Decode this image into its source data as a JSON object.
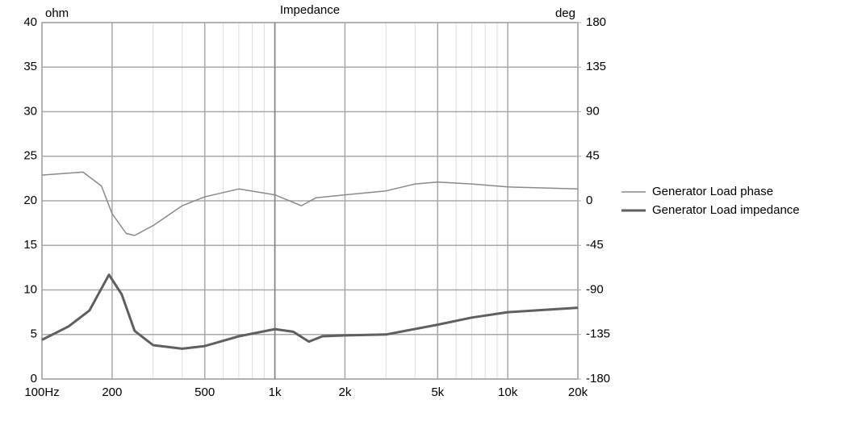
{
  "chart_data": {
    "type": "line",
    "title": "Impedance",
    "y_label": "ohm",
    "y2_label": "deg",
    "x_log": true,
    "grid": true,
    "legend_position": "right",
    "xlim": [
      100,
      20000
    ],
    "xticks": [
      {
        "value": 100,
        "label": "100Hz"
      },
      200,
      500,
      {
        "value": 1000,
        "label": "1k"
      },
      {
        "value": 2000,
        "label": "2k"
      },
      {
        "value": 5000,
        "label": "5k"
      },
      {
        "value": 10000,
        "label": "10k"
      },
      {
        "value": 20000,
        "label": "20k"
      }
    ],
    "ylim": [
      0,
      40
    ],
    "yticks": [
      0,
      5,
      10,
      15,
      20,
      25,
      30,
      35,
      40
    ],
    "y2lim": [
      -180,
      180
    ],
    "y2ticks": [
      -180,
      -135,
      -90,
      -45,
      0,
      45,
      90,
      135,
      180
    ],
    "series": [
      {
        "name": "Generator Load phase",
        "color": "#8a8a8a",
        "axis": "y2",
        "x": [
          100,
          150,
          180,
          200,
          230,
          250,
          300,
          400,
          500,
          700,
          1000,
          1300,
          1500,
          2000,
          3000,
          4000,
          5000,
          7000,
          10000,
          20000
        ],
        "values": [
          26,
          29,
          15,
          -13,
          -33,
          -35,
          -25,
          -5,
          4,
          12,
          6,
          -5,
          3,
          6,
          10,
          17,
          19,
          17,
          14,
          12
        ]
      },
      {
        "name": "Generator Load impedance",
        "color": "#5f5f5f",
        "axis": "y",
        "x": [
          100,
          130,
          160,
          194,
          220,
          250,
          300,
          400,
          500,
          700,
          1000,
          1200,
          1400,
          1600,
          2000,
          3000,
          5000,
          7000,
          10000,
          20000
        ],
        "values": [
          4.4,
          5.9,
          7.7,
          11.7,
          9.5,
          5.4,
          3.8,
          3.4,
          3.7,
          4.8,
          5.6,
          5.3,
          4.2,
          4.8,
          4.9,
          5.0,
          6.1,
          6.9,
          7.5,
          8.0
        ]
      }
    ]
  }
}
